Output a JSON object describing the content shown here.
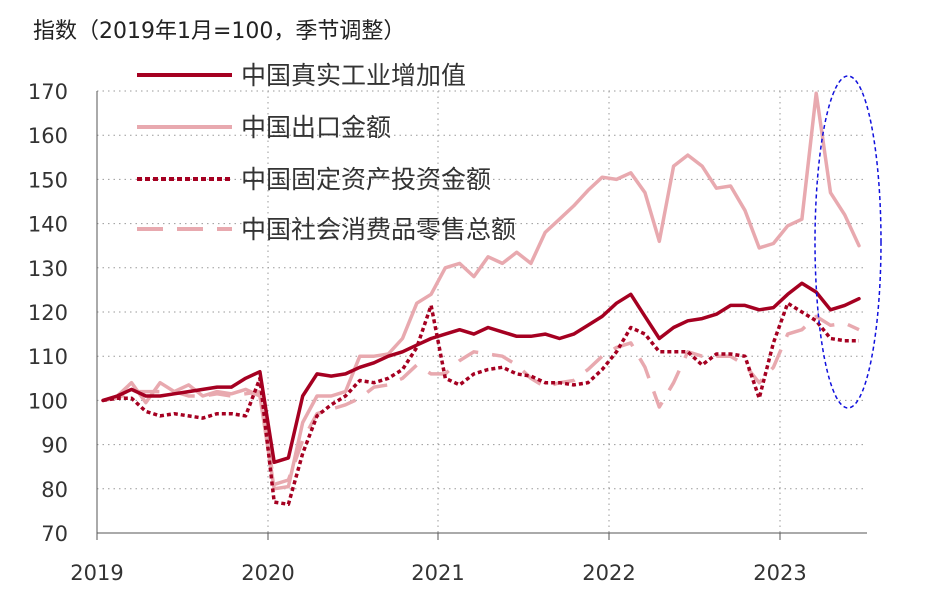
{
  "chart_data": {
    "type": "line",
    "ylabel": "指数（2019年1月=100，季节调整）",
    "ylim": [
      70,
      170
    ],
    "yticks": [
      70,
      80,
      90,
      100,
      110,
      120,
      130,
      140,
      150,
      160,
      170
    ],
    "xticks": [
      "2019",
      "2020",
      "2021",
      "2022",
      "2023"
    ],
    "x": [
      "2019-01",
      "2019-02",
      "2019-03",
      "2019-04",
      "2019-05",
      "2019-06",
      "2019-07",
      "2019-08",
      "2019-09",
      "2019-10",
      "2019-11",
      "2019-12",
      "2020-01",
      "2020-02",
      "2020-03",
      "2020-04",
      "2020-05",
      "2020-06",
      "2020-07",
      "2020-08",
      "2020-09",
      "2020-10",
      "2020-11",
      "2020-12",
      "2021-01",
      "2021-02",
      "2021-03",
      "2021-04",
      "2021-05",
      "2021-06",
      "2021-07",
      "2021-08",
      "2021-09",
      "2021-10",
      "2021-11",
      "2021-12",
      "2022-01",
      "2022-02",
      "2022-03",
      "2022-04",
      "2022-05",
      "2022-06",
      "2022-07",
      "2022-08",
      "2022-09",
      "2022-10",
      "2022-11",
      "2022-12",
      "2023-01",
      "2023-02",
      "2023-03",
      "2023-04",
      "2023-05",
      "2023-06"
    ],
    "grid": true,
    "legend_position": "top",
    "highlight": "dashed blue ellipse around 2023-02 to 2023-06",
    "series": [
      {
        "name": "中国真实工业增加值",
        "style": "solid",
        "color": "#A50021",
        "width": 3.5,
        "values": [
          100,
          101,
          102.5,
          101,
          101,
          101.5,
          102,
          102.5,
          103,
          103,
          105,
          106.5,
          86,
          87,
          101,
          106,
          105.5,
          106,
          107.5,
          108.5,
          110,
          111,
          112.5,
          114,
          115,
          116,
          115,
          116.5,
          115.5,
          114.5,
          114.5,
          115,
          114,
          115,
          117,
          119,
          122,
          124,
          119,
          114,
          116.5,
          118,
          118.5,
          119.5,
          121.5,
          121.5,
          120.5,
          121,
          124,
          126.5,
          124.5,
          120.5,
          121.5,
          123
        ]
      },
      {
        "name": "中国出口金额",
        "style": "solid",
        "color": "#E8A9AF",
        "width": 3.5,
        "values": [
          100,
          101,
          104,
          99.5,
          104,
          102,
          103.5,
          101,
          102,
          101.5,
          102.5,
          101,
          80,
          80.5,
          95,
          101,
          101,
          102,
          110,
          110,
          110.5,
          114,
          122,
          124,
          130,
          131,
          128,
          132.5,
          131,
          133.5,
          131,
          138,
          141,
          144,
          147.5,
          150.5,
          150,
          151.5,
          147,
          136,
          153,
          155.5,
          153,
          148,
          148.5,
          143,
          134.5,
          135.5,
          139.5,
          141,
          169.5,
          147,
          142,
          135
        ]
      },
      {
        "name": "中国固定资产投资金额",
        "style": "dotted",
        "color": "#A50021",
        "width": 3.5,
        "values": [
          100,
          100.5,
          100.5,
          97.5,
          96.5,
          97,
          96.5,
          96,
          97,
          97,
          96.5,
          105,
          77,
          76.5,
          88,
          96.5,
          99,
          101,
          104.5,
          104,
          105,
          107,
          112,
          121.5,
          105,
          103.5,
          106,
          107,
          107.5,
          106,
          105.5,
          104,
          104,
          103.5,
          104,
          107,
          111,
          116.5,
          115,
          111,
          111,
          111,
          108,
          110.5,
          110.5,
          110,
          100.5,
          113,
          122,
          120,
          118,
          114,
          113.5,
          113.5
        ]
      },
      {
        "name": "中国社会消费品零售总额",
        "style": "dashed",
        "color": "#E8A9AF",
        "width": 3.5,
        "values": [
          100,
          100.5,
          102,
          102,
          102,
          102,
          101,
          101,
          101.5,
          101,
          101.5,
          102,
          81,
          82,
          91,
          97,
          98,
          99,
          100.5,
          103,
          103.5,
          105,
          108,
          106,
          106,
          109,
          111,
          110.5,
          110,
          108,
          105,
          103,
          104,
          104.5,
          107,
          110,
          112,
          113,
          107.5,
          98.5,
          104,
          111,
          110,
          110,
          110,
          108,
          104,
          107.5,
          115,
          116,
          119,
          117,
          117.5,
          116
        ]
      }
    ]
  }
}
